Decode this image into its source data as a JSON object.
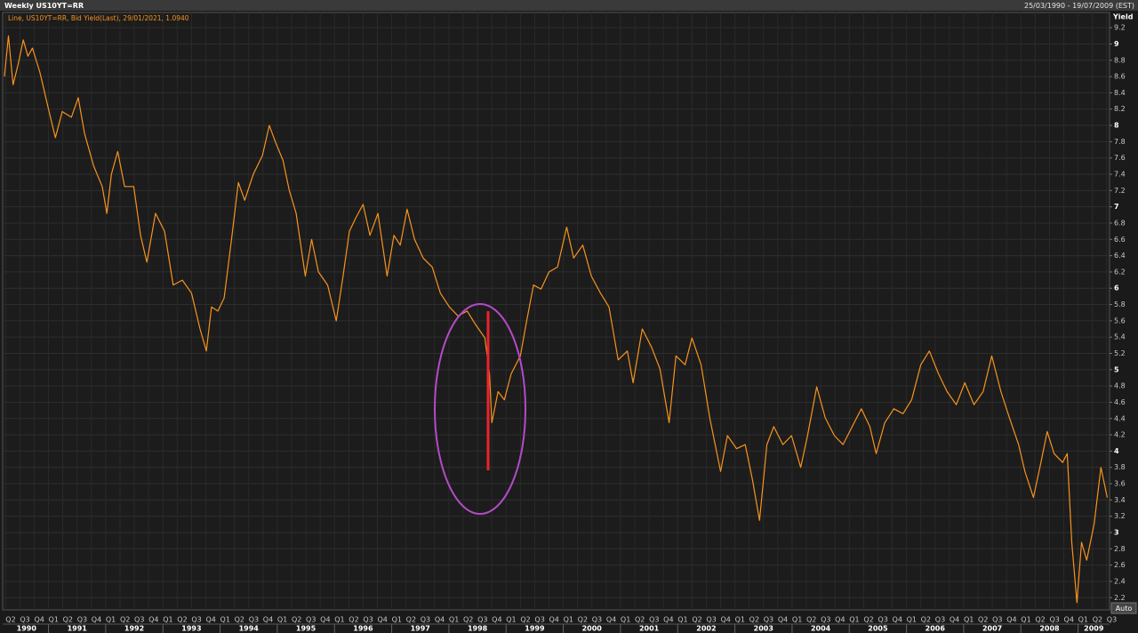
{
  "chart_data": {
    "type": "line",
    "title": "Weekly US10YT=RR",
    "date_range": "25/03/1990 - 19/07/2009 (EST)",
    "y_axis_label": "Yield",
    "auto_button": "Auto",
    "grid": true,
    "series": [
      {
        "name": "Line, US10YT=RR, Bid Yield(Last), 29/01/2021, 1.0940",
        "color": "#f7931e",
        "x": [
          1990.23,
          1990.3,
          1990.38,
          1990.47,
          1990.56,
          1990.64,
          1990.72,
          1990.85,
          1991.01,
          1991.12,
          1991.24,
          1991.4,
          1991.52,
          1991.63,
          1991.79,
          1991.94,
          1992.02,
          1992.1,
          1992.21,
          1992.33,
          1992.49,
          1992.61,
          1992.72,
          1992.87,
          1993.03,
          1993.18,
          1993.34,
          1993.5,
          1993.65,
          1993.76,
          1993.85,
          1993.96,
          1994.07,
          1994.2,
          1994.32,
          1994.43,
          1994.58,
          1994.74,
          1994.86,
          1994.97,
          1995.1,
          1995.21,
          1995.33,
          1995.49,
          1995.6,
          1995.72,
          1995.88,
          1996.03,
          1996.14,
          1996.26,
          1996.37,
          1996.5,
          1996.62,
          1996.76,
          1996.92,
          1997.04,
          1997.15,
          1997.27,
          1997.4,
          1997.55,
          1997.71,
          1997.85,
          1998.01,
          1998.16,
          1998.32,
          1998.47,
          1998.63,
          1998.71,
          1998.75,
          1998.86,
          1998.97,
          1999.09,
          1999.25,
          1999.36,
          1999.48,
          1999.61,
          1999.75,
          1999.9,
          2000.06,
          2000.18,
          2000.34,
          2000.49,
          2000.65,
          2000.8,
          2000.96,
          2001.12,
          2001.22,
          2001.38,
          2001.54,
          2001.69,
          2001.85,
          2001.97,
          2002.13,
          2002.25,
          2002.41,
          2002.56,
          2002.75,
          2002.87,
          2003.03,
          2003.18,
          2003.31,
          2003.43,
          2003.56,
          2003.68,
          2003.84,
          2003.99,
          2004.15,
          2004.27,
          2004.43,
          2004.58,
          2004.74,
          2004.89,
          2005.05,
          2005.21,
          2005.36,
          2005.47,
          2005.62,
          2005.78,
          2005.94,
          2006.09,
          2006.25,
          2006.4,
          2006.56,
          2006.71,
          2006.87,
          2007.02,
          2007.18,
          2007.34,
          2007.49,
          2007.65,
          2007.8,
          2007.96,
          2008.07,
          2008.22,
          2008.35,
          2008.46,
          2008.58,
          2008.73,
          2008.81,
          2008.89,
          2008.98,
          2009.06,
          2009.15,
          2009.28,
          2009.4,
          2009.51
        ],
        "values": [
          8.6,
          9.1,
          8.5,
          8.75,
          9.05,
          8.85,
          8.95,
          8.65,
          8.17,
          7.85,
          8.17,
          8.1,
          8.34,
          7.9,
          7.5,
          7.25,
          6.92,
          7.4,
          7.68,
          7.25,
          7.25,
          6.65,
          6.32,
          6.92,
          6.7,
          6.04,
          6.1,
          5.94,
          5.5,
          5.23,
          5.77,
          5.72,
          5.88,
          6.6,
          7.3,
          7.08,
          7.4,
          7.63,
          8.0,
          7.79,
          7.57,
          7.2,
          6.92,
          6.15,
          6.6,
          6.2,
          6.04,
          5.6,
          6.1,
          6.7,
          6.86,
          7.03,
          6.65,
          6.92,
          6.15,
          6.65,
          6.53,
          6.97,
          6.6,
          6.37,
          6.26,
          5.94,
          5.77,
          5.66,
          5.72,
          5.55,
          5.39,
          4.95,
          4.35,
          4.73,
          4.63,
          4.95,
          5.17,
          5.6,
          6.04,
          5.99,
          6.2,
          6.26,
          6.75,
          6.37,
          6.53,
          6.15,
          5.94,
          5.77,
          5.12,
          5.23,
          4.84,
          5.5,
          5.28,
          5.01,
          4.35,
          5.17,
          5.06,
          5.39,
          5.06,
          4.41,
          3.75,
          4.19,
          4.03,
          4.08,
          3.64,
          3.15,
          4.08,
          4.3,
          4.08,
          4.19,
          3.8,
          4.19,
          4.79,
          4.41,
          4.19,
          4.08,
          4.3,
          4.52,
          4.3,
          3.97,
          4.35,
          4.52,
          4.46,
          4.63,
          5.06,
          5.23,
          4.95,
          4.73,
          4.57,
          4.84,
          4.57,
          4.73,
          5.17,
          4.73,
          4.41,
          4.08,
          3.75,
          3.43,
          3.86,
          4.24,
          3.97,
          3.86,
          3.97,
          2.88,
          2.14,
          2.88,
          2.66,
          3.1,
          3.8,
          3.43
        ]
      }
    ],
    "xlim": [
      1990.23,
      2009.55
    ],
    "ylim": [
      2.05,
      9.3
    ],
    "yticks": [
      2.2,
      2.4,
      2.6,
      2.8,
      3,
      3.2,
      3.4,
      3.6,
      3.8,
      4,
      4.2,
      4.4,
      4.6,
      4.8,
      5,
      5.2,
      5.4,
      5.6,
      5.8,
      6,
      6.2,
      6.4,
      6.6,
      6.8,
      7,
      7.2,
      7.4,
      7.6,
      7.8,
      8,
      8.2,
      8.4,
      8.6,
      8.8,
      9,
      9.2
    ],
    "xticks": [
      {
        "value": 1990.25,
        "label": "Q2"
      },
      {
        "value": 1990.5,
        "label": "Q3"
      },
      {
        "value": 1990.75,
        "label": "Q4"
      },
      {
        "value": 1991,
        "label": "Q1"
      },
      {
        "value": 1991.25,
        "label": "Q2"
      },
      {
        "value": 1991.5,
        "label": "Q3"
      },
      {
        "value": 1991.75,
        "label": "Q4"
      },
      {
        "value": 1992,
        "label": "Q1"
      },
      {
        "value": 1992.25,
        "label": "Q2"
      },
      {
        "value": 1992.5,
        "label": "Q3"
      },
      {
        "value": 1992.75,
        "label": "Q4"
      },
      {
        "value": 1993,
        "label": "Q1"
      },
      {
        "value": 1993.25,
        "label": "Q2"
      },
      {
        "value": 1993.5,
        "label": "Q3"
      },
      {
        "value": 1993.75,
        "label": "Q4"
      },
      {
        "value": 1994,
        "label": "Q1"
      },
      {
        "value": 1994.25,
        "label": "Q2"
      },
      {
        "value": 1994.5,
        "label": "Q3"
      },
      {
        "value": 1994.75,
        "label": "Q4"
      },
      {
        "value": 1995,
        "label": "Q1"
      },
      {
        "value": 1995.25,
        "label": "Q2"
      },
      {
        "value": 1995.5,
        "label": "Q3"
      },
      {
        "value": 1995.75,
        "label": "Q4"
      },
      {
        "value": 1996,
        "label": "Q1"
      },
      {
        "value": 1996.25,
        "label": "Q2"
      },
      {
        "value": 1996.5,
        "label": "Q3"
      },
      {
        "value": 1996.75,
        "label": "Q4"
      },
      {
        "value": 1997,
        "label": "Q1"
      },
      {
        "value": 1997.25,
        "label": "Q2"
      },
      {
        "value": 1997.5,
        "label": "Q3"
      },
      {
        "value": 1997.75,
        "label": "Q4"
      },
      {
        "value": 1998,
        "label": "Q1"
      },
      {
        "value": 1998.25,
        "label": "Q2"
      },
      {
        "value": 1998.5,
        "label": "Q3"
      },
      {
        "value": 1998.75,
        "label": "Q4"
      },
      {
        "value": 1999,
        "label": "Q1"
      },
      {
        "value": 1999.25,
        "label": "Q2"
      },
      {
        "value": 1999.5,
        "label": "Q3"
      },
      {
        "value": 1999.75,
        "label": "Q4"
      },
      {
        "value": 2000,
        "label": "Q1"
      },
      {
        "value": 2000.25,
        "label": "Q2"
      },
      {
        "value": 2000.5,
        "label": "Q3"
      },
      {
        "value": 2000.75,
        "label": "Q4"
      },
      {
        "value": 2001,
        "label": "Q1"
      },
      {
        "value": 2001.25,
        "label": "Q2"
      },
      {
        "value": 2001.5,
        "label": "Q3"
      },
      {
        "value": 2001.75,
        "label": "Q4"
      },
      {
        "value": 2002,
        "label": "Q1"
      },
      {
        "value": 2002.25,
        "label": "Q2"
      },
      {
        "value": 2002.5,
        "label": "Q3"
      },
      {
        "value": 2002.75,
        "label": "Q4"
      },
      {
        "value": 2003,
        "label": "Q1"
      },
      {
        "value": 2003.25,
        "label": "Q2"
      },
      {
        "value": 2003.5,
        "label": "Q3"
      },
      {
        "value": 2003.75,
        "label": "Q4"
      },
      {
        "value": 2004,
        "label": "Q1"
      },
      {
        "value": 2004.25,
        "label": "Q2"
      },
      {
        "value": 2004.5,
        "label": "Q3"
      },
      {
        "value": 2004.75,
        "label": "Q4"
      },
      {
        "value": 2005,
        "label": "Q1"
      },
      {
        "value": 2005.25,
        "label": "Q2"
      },
      {
        "value": 2005.5,
        "label": "Q3"
      },
      {
        "value": 2005.75,
        "label": "Q4"
      },
      {
        "value": 2006,
        "label": "Q1"
      },
      {
        "value": 2006.25,
        "label": "Q2"
      },
      {
        "value": 2006.5,
        "label": "Q3"
      },
      {
        "value": 2006.75,
        "label": "Q4"
      },
      {
        "value": 2007,
        "label": "Q1"
      },
      {
        "value": 2007.25,
        "label": "Q2"
      },
      {
        "value": 2007.5,
        "label": "Q3"
      },
      {
        "value": 2007.75,
        "label": "Q4"
      },
      {
        "value": 2008,
        "label": "Q1"
      },
      {
        "value": 2008.25,
        "label": "Q2"
      },
      {
        "value": 2008.5,
        "label": "Q3"
      },
      {
        "value": 2008.75,
        "label": "Q4"
      },
      {
        "value": 2009,
        "label": "Q1"
      },
      {
        "value": 2009.25,
        "label": "Q2"
      },
      {
        "value": 2009.5,
        "label": "Q3"
      }
    ],
    "year_ticks": [
      1990,
      1991,
      1992,
      1993,
      1994,
      1995,
      1996,
      1997,
      1998,
      1999,
      2000,
      2001,
      2002,
      2003,
      2004,
      2005,
      2006,
      2007,
      2008,
      2009
    ]
  }
}
